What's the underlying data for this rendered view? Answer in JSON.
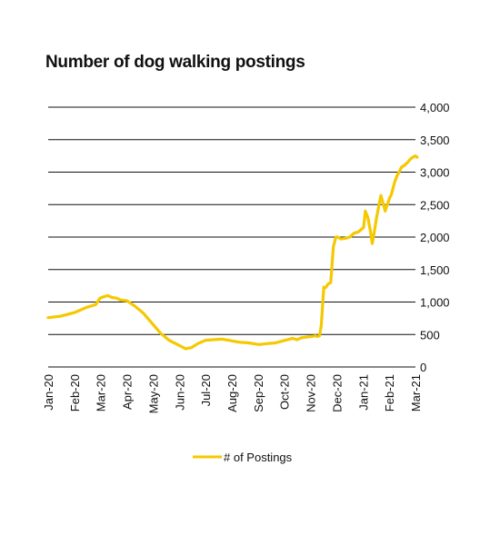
{
  "chart_data": {
    "type": "line",
    "title": "Number of dog walking postings",
    "xlabel": "",
    "ylabel": "",
    "x_tick_labels": [
      "Jan-20",
      "Feb-20",
      "Mar-20",
      "Apr-20",
      "May-20",
      "Jun-20",
      "Jul-20",
      "Aug-20",
      "Sep-20",
      "Oct-20",
      "Nov-20",
      "Dec-20",
      "Jan-21",
      "Feb-21",
      "Mar-21"
    ],
    "y_ticks": [
      0,
      500,
      1000,
      1500,
      2000,
      2500,
      3000,
      3500,
      4000
    ],
    "y_tick_labels": [
      "0",
      "500",
      "1,000",
      "1,500",
      "2,000",
      "2,500",
      "3,000",
      "3,500",
      "4,000"
    ],
    "ylim": [
      0,
      4000
    ],
    "grid": "horizontal",
    "y_axis_position": "right",
    "legend_position": "bottom",
    "series": [
      {
        "name": "# of Postings",
        "color": "#F5C800",
        "x": [
          "2020-01-01",
          "2020-01-15",
          "2020-02-01",
          "2020-02-15",
          "2020-02-25",
          "2020-03-01",
          "2020-03-05",
          "2020-03-10",
          "2020-03-15",
          "2020-03-20",
          "2020-03-25",
          "2020-04-01",
          "2020-04-10",
          "2020-04-20",
          "2020-05-01",
          "2020-05-10",
          "2020-05-20",
          "2020-06-01",
          "2020-06-08",
          "2020-06-15",
          "2020-06-22",
          "2020-07-01",
          "2020-07-10",
          "2020-07-20",
          "2020-08-01",
          "2020-08-10",
          "2020-08-20",
          "2020-09-01",
          "2020-09-10",
          "2020-09-20",
          "2020-10-01",
          "2020-10-10",
          "2020-10-15",
          "2020-10-20",
          "2020-11-01",
          "2020-11-05",
          "2020-11-08",
          "2020-11-10",
          "2020-11-12",
          "2020-11-15",
          "2020-11-17",
          "2020-11-20",
          "2020-11-23",
          "2020-11-26",
          "2020-11-29",
          "2020-12-01",
          "2020-12-05",
          "2020-12-10",
          "2020-12-15",
          "2020-12-20",
          "2020-12-25",
          "2020-12-31",
          "2021-01-02",
          "2021-01-05",
          "2021-01-08",
          "2021-01-10",
          "2021-01-12",
          "2021-01-15",
          "2021-01-20",
          "2021-01-25",
          "2021-01-30",
          "2021-02-01",
          "2021-02-03",
          "2021-02-05",
          "2021-02-08",
          "2021-02-10",
          "2021-02-13",
          "2021-02-16",
          "2021-02-20",
          "2021-02-23",
          "2021-02-26",
          "2021-03-01",
          "2021-03-03"
        ],
        "values": [
          760,
          780,
          840,
          920,
          960,
          1060,
          1080,
          1100,
          1070,
          1060,
          1030,
          1020,
          940,
          830,
          660,
          520,
          410,
          330,
          280,
          300,
          360,
          410,
          420,
          430,
          400,
          380,
          370,
          345,
          360,
          370,
          410,
          440,
          420,
          450,
          470,
          480,
          470,
          480,
          640,
          1230,
          1220,
          1280,
          1300,
          1850,
          2000,
          2000,
          1970,
          1980,
          2000,
          2060,
          2080,
          2150,
          2400,
          2300,
          2080,
          1900,
          2050,
          2300,
          2640,
          2400,
          2600,
          2650,
          2750,
          2850,
          2950,
          3000,
          3080,
          3100,
          3150,
          3200,
          3230,
          3250,
          3230
        ]
      }
    ]
  }
}
